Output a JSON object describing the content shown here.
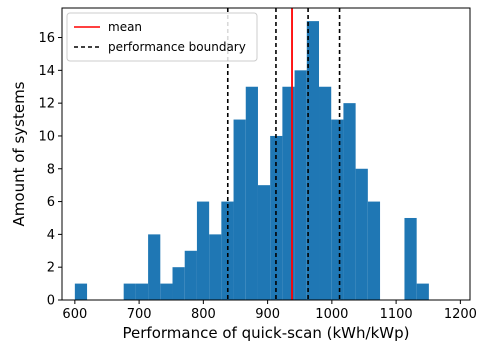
{
  "chart_data": {
    "type": "histogram",
    "xlabel": "Performance of quick-scan (kWh/kWp)",
    "ylabel": "Amount of systems",
    "xlim": [
      580,
      1215
    ],
    "ylim": [
      0,
      17.8
    ],
    "xticks": [
      600,
      700,
      800,
      900,
      1000,
      1100,
      1200
    ],
    "yticks": [
      0,
      2,
      4,
      6,
      8,
      10,
      12,
      14,
      16
    ],
    "bar_color": "#1f77b4",
    "bins": [
      {
        "x0": 600,
        "x1": 619,
        "count": 1
      },
      {
        "x0": 619,
        "x1": 638,
        "count": 0
      },
      {
        "x0": 638,
        "x1": 657,
        "count": 0
      },
      {
        "x0": 657,
        "x1": 676,
        "count": 0
      },
      {
        "x0": 676,
        "x1": 695,
        "count": 1
      },
      {
        "x0": 695,
        "x1": 714,
        "count": 1
      },
      {
        "x0": 714,
        "x1": 733,
        "count": 4
      },
      {
        "x0": 733,
        "x1": 752,
        "count": 1
      },
      {
        "x0": 752,
        "x1": 771,
        "count": 2
      },
      {
        "x0": 771,
        "x1": 790,
        "count": 3
      },
      {
        "x0": 790,
        "x1": 809,
        "count": 6
      },
      {
        "x0": 809,
        "x1": 828,
        "count": 4
      },
      {
        "x0": 828,
        "x1": 847,
        "count": 6
      },
      {
        "x0": 847,
        "x1": 866,
        "count": 11
      },
      {
        "x0": 866,
        "x1": 885,
        "count": 13
      },
      {
        "x0": 885,
        "x1": 904,
        "count": 7
      },
      {
        "x0": 904,
        "x1": 923,
        "count": 10
      },
      {
        "x0": 923,
        "x1": 942,
        "count": 13
      },
      {
        "x0": 942,
        "x1": 961,
        "count": 14
      },
      {
        "x0": 961,
        "x1": 980,
        "count": 17
      },
      {
        "x0": 980,
        "x1": 999,
        "count": 13
      },
      {
        "x0": 999,
        "x1": 1018,
        "count": 11
      },
      {
        "x0": 1018,
        "x1": 1037,
        "count": 12
      },
      {
        "x0": 1037,
        "x1": 1056,
        "count": 8
      },
      {
        "x0": 1056,
        "x1": 1075,
        "count": 6
      },
      {
        "x0": 1075,
        "x1": 1094,
        "count": 0
      },
      {
        "x0": 1094,
        "x1": 1113,
        "count": 0
      },
      {
        "x0": 1113,
        "x1": 1132,
        "count": 5
      },
      {
        "x0": 1132,
        "x1": 1151,
        "count": 1
      }
    ],
    "mean": {
      "value": 938,
      "color": "#ff0000",
      "label": "mean"
    },
    "boundaries": {
      "values": [
        838,
        913,
        963,
        1012
      ],
      "color": "#000000",
      "label": "performance boundary"
    },
    "legend": {
      "position": "top-left"
    }
  }
}
